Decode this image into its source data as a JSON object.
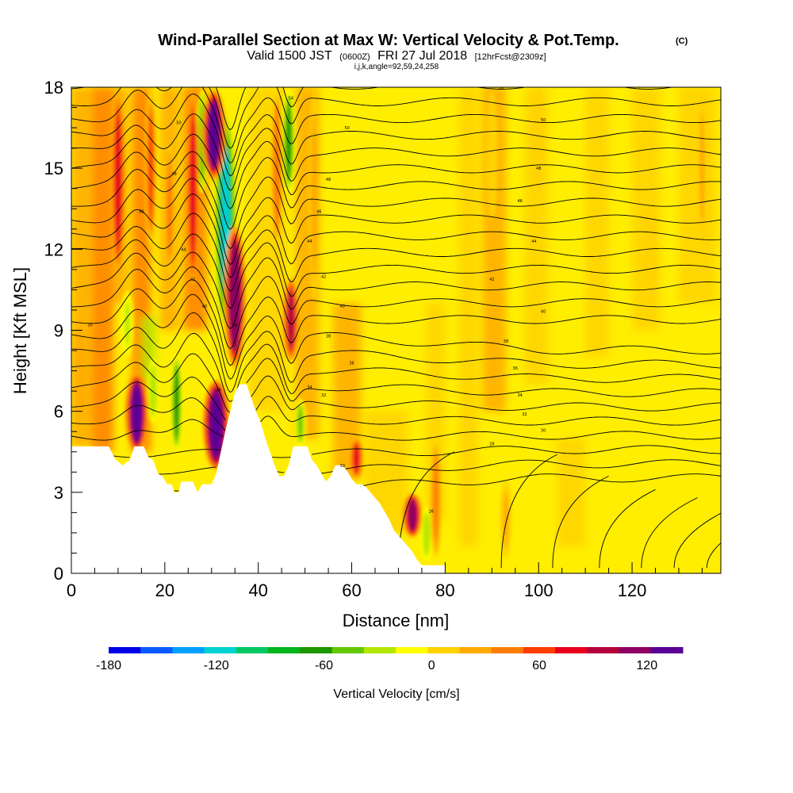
{
  "title": {
    "main": "Wind-Parallel Section at Max W: Vertical Velocity & Pot.Temp.",
    "main_unit": "(C)",
    "valid_prefix": "Valid 1500 JST",
    "valid_utc": "(0600Z)",
    "valid_date": "FRI 27 Jul 2018",
    "forecast": "[12hrFcst@2309z]",
    "indices": "i,j,k,angle=92,59,24,258"
  },
  "chart_data": {
    "type": "heatmap",
    "xlabel": "Distance [nm]",
    "ylabel": "Height [Kft MSL]",
    "xlim": [
      0,
      139
    ],
    "ylim": [
      0,
      18
    ],
    "x_ticks": [
      "0",
      "20",
      "40",
      "60",
      "80",
      "100",
      "120"
    ],
    "y_ticks": [
      "0",
      "3",
      "6",
      "9",
      "12",
      "15",
      "18"
    ],
    "x_tick_values": [
      0,
      20,
      40,
      60,
      80,
      100,
      120
    ],
    "y_tick_values": [
      0,
      3,
      6,
      9,
      12,
      15,
      18
    ],
    "colorbar": {
      "label": "Vertical Velocity [cm/s]",
      "range": [
        -180,
        140
      ],
      "tick_labels": [
        "-180",
        "-120",
        "-60",
        "0",
        "60",
        "120"
      ],
      "tick_values": [
        -180,
        -120,
        -60,
        0,
        60,
        120
      ],
      "colors": [
        "#0000e6",
        "#0a5aff",
        "#00a0ff",
        "#00d2d2",
        "#00c864",
        "#00b41e",
        "#1e9600",
        "#64c800",
        "#b4e600",
        "#ffff00",
        "#ffd200",
        "#ffaa00",
        "#ff7d00",
        "#ff3c00",
        "#e6001e",
        "#b4003c",
        "#8c0064",
        "#5a0096"
      ]
    },
    "terrain_kft": [
      [
        0,
        4.7
      ],
      [
        8,
        4.7
      ],
      [
        9.5,
        4.2
      ],
      [
        11,
        4.0
      ],
      [
        12.5,
        4.2
      ],
      [
        13.5,
        4.7
      ],
      [
        15.5,
        4.7
      ],
      [
        16.5,
        4.3
      ],
      [
        17.5,
        4.2
      ],
      [
        18.5,
        3.7
      ],
      [
        19.5,
        3.6
      ],
      [
        20.5,
        3.3
      ],
      [
        21.5,
        3.3
      ],
      [
        22,
        3.0
      ],
      [
        23,
        3.0
      ],
      [
        23.5,
        3.4
      ],
      [
        26,
        3.4
      ],
      [
        27,
        3.0
      ],
      [
        28,
        3.3
      ],
      [
        30,
        3.3
      ],
      [
        31,
        3.7
      ],
      [
        32,
        4.5
      ],
      [
        33,
        5.3
      ],
      [
        34,
        6.0
      ],
      [
        35,
        6.7
      ],
      [
        36,
        7.0
      ],
      [
        37.5,
        7.0
      ],
      [
        38.5,
        6.5
      ],
      [
        39.5,
        6.0
      ],
      [
        40.5,
        5.6
      ],
      [
        41.5,
        5.0
      ],
      [
        42.5,
        4.5
      ],
      [
        43.5,
        4.0
      ],
      [
        44.5,
        3.6
      ],
      [
        45.5,
        3.6
      ],
      [
        46.5,
        4.0
      ],
      [
        47.5,
        4.7
      ],
      [
        50.5,
        4.7
      ],
      [
        51.5,
        4.2
      ],
      [
        52.5,
        4.0
      ],
      [
        53.5,
        3.7
      ],
      [
        54.5,
        3.4
      ],
      [
        55.5,
        3.6
      ],
      [
        56.5,
        4.0
      ],
      [
        58,
        4.0
      ],
      [
        59,
        3.8
      ],
      [
        60,
        3.5
      ],
      [
        61,
        3.3
      ],
      [
        62,
        3.3
      ],
      [
        63,
        3.2
      ],
      [
        64,
        3.0
      ],
      [
        65,
        2.8
      ],
      [
        66,
        2.6
      ],
      [
        67,
        2.3
      ],
      [
        68,
        2.0
      ],
      [
        69,
        1.6
      ],
      [
        70,
        1.4
      ],
      [
        71,
        1.2
      ],
      [
        72,
        1.0
      ],
      [
        73,
        0.8
      ],
      [
        74,
        0.5
      ],
      [
        75,
        0.3
      ],
      [
        80,
        0.3
      ],
      [
        80,
        0.0
      ],
      [
        139,
        0.0
      ]
    ],
    "updraft_cores": [
      {
        "x": 14,
        "top": 7.5,
        "bottom": 4.4,
        "w": 130
      },
      {
        "x": 10,
        "top": 18,
        "bottom": 11,
        "w": 75
      },
      {
        "x": 17,
        "top": 18,
        "bottom": 12,
        "w": 60
      },
      {
        "x": 21,
        "top": 16,
        "bottom": 11,
        "w": 35
      },
      {
        "x": 26,
        "top": 18,
        "bottom": 10.5,
        "w": 70
      },
      {
        "x": 30.5,
        "top": 18,
        "bottom": 14.5,
        "w": 130
      },
      {
        "x": 31,
        "top": 7.2,
        "bottom": 3.8,
        "w": 140
      },
      {
        "x": 35,
        "top": 13,
        "bottom": 7.5,
        "w": 120
      },
      {
        "x": 47,
        "top": 11,
        "bottom": 7.8,
        "w": 90
      },
      {
        "x": 44,
        "top": 18,
        "bottom": 12,
        "w": 50
      },
      {
        "x": 52,
        "top": 18,
        "bottom": 10,
        "w": 30
      },
      {
        "x": 61,
        "top": 5.0,
        "bottom": 3.5,
        "w": 70
      },
      {
        "x": 73,
        "top": 3.0,
        "bottom": 1.3,
        "w": 105
      },
      {
        "x": 78,
        "top": 5.0,
        "bottom": 0.5,
        "w": 40
      },
      {
        "x": 93,
        "top": 3.5,
        "bottom": 0.5,
        "w": 20
      },
      {
        "x": 90,
        "top": 18,
        "bottom": 13,
        "w": 15
      },
      {
        "x": 100,
        "top": 18,
        "bottom": 14,
        "w": 15
      },
      {
        "x": 135,
        "top": 18,
        "bottom": 12,
        "w": 20
      },
      {
        "x": 124,
        "top": 14,
        "bottom": 10,
        "w": 15
      }
    ],
    "downdraft_cores": [
      {
        "x": 22.5,
        "top": 8.2,
        "bottom": 4.4,
        "w": -60
      },
      {
        "x": 17.5,
        "top": 8.0,
        "bottom": 5.5,
        "w": -30
      },
      {
        "x": 28,
        "top": 18,
        "bottom": 14,
        "w": -45
      },
      {
        "x": 33,
        "top": 17,
        "bottom": 9,
        "w": -110
      },
      {
        "x": 46.5,
        "top": 18,
        "bottom": 14,
        "w": -70
      },
      {
        "x": 12,
        "top": 10.5,
        "bottom": 8,
        "w": -25
      },
      {
        "x": 49,
        "top": 6.5,
        "bottom": 4.6,
        "w": -40
      },
      {
        "x": 76,
        "top": 2.5,
        "bottom": 0.4,
        "w": -30
      }
    ],
    "contour_labels": [
      {
        "x": 4,
        "y": 9.2,
        "text": "30"
      },
      {
        "x": 23,
        "y": 16.7,
        "text": "50"
      },
      {
        "x": 22,
        "y": 14.8,
        "text": "48"
      },
      {
        "x": 15,
        "y": 13.4,
        "text": "46"
      },
      {
        "x": 24,
        "y": 12.0,
        "text": "44"
      },
      {
        "x": 26,
        "y": 10.9,
        "text": "42"
      },
      {
        "x": 28.5,
        "y": 9.9,
        "text": "40"
      },
      {
        "x": 35,
        "y": 9.2,
        "text": "38"
      },
      {
        "x": 31.5,
        "y": 6.8,
        "text": "36"
      },
      {
        "x": 47,
        "y": 17.6,
        "text": "54"
      },
      {
        "x": 59,
        "y": 16.5,
        "text": "50"
      },
      {
        "x": 55,
        "y": 14.6,
        "text": "48"
      },
      {
        "x": 53,
        "y": 13.4,
        "text": "46"
      },
      {
        "x": 51,
        "y": 12.3,
        "text": "44"
      },
      {
        "x": 54,
        "y": 11.0,
        "text": "42"
      },
      {
        "x": 58,
        "y": 9.9,
        "text": "40"
      },
      {
        "x": 55,
        "y": 8.8,
        "text": "38"
      },
      {
        "x": 60,
        "y": 7.8,
        "text": "36"
      },
      {
        "x": 51,
        "y": 6.9,
        "text": "34"
      },
      {
        "x": 54,
        "y": 6.6,
        "text": "32"
      },
      {
        "x": 58,
        "y": 4.0,
        "text": "30"
      },
      {
        "x": 92,
        "y": 18.0,
        "text": "56"
      },
      {
        "x": 101,
        "y": 16.8,
        "text": "50"
      },
      {
        "x": 100,
        "y": 15.0,
        "text": "48"
      },
      {
        "x": 96,
        "y": 13.8,
        "text": "46"
      },
      {
        "x": 99,
        "y": 12.3,
        "text": "44"
      },
      {
        "x": 90,
        "y": 10.9,
        "text": "42"
      },
      {
        "x": 101,
        "y": 9.7,
        "text": "40"
      },
      {
        "x": 93,
        "y": 8.6,
        "text": "38"
      },
      {
        "x": 95,
        "y": 7.6,
        "text": "36"
      },
      {
        "x": 96,
        "y": 6.6,
        "text": "34"
      },
      {
        "x": 97,
        "y": 5.9,
        "text": "32"
      },
      {
        "x": 101,
        "y": 5.3,
        "text": "30"
      },
      {
        "x": 90,
        "y": 4.8,
        "text": "28"
      },
      {
        "x": 77,
        "y": 2.3,
        "text": "26"
      }
    ]
  }
}
